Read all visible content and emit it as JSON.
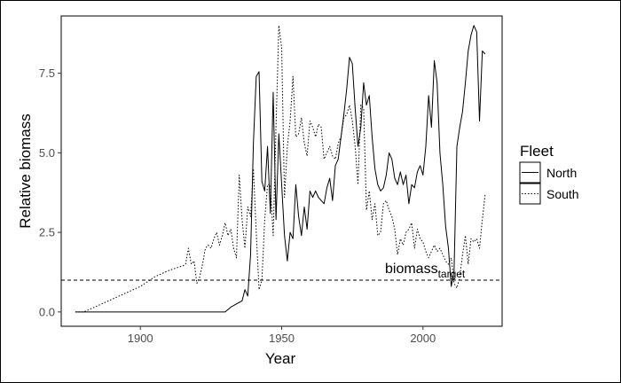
{
  "chart_data": {
    "type": "line",
    "title": "",
    "xlabel": "Year",
    "ylabel": "Relative biomass",
    "xlim": [
      1872,
      2028
    ],
    "ylim": [
      -0.45,
      9.3
    ],
    "x_ticks": [
      1900,
      1950,
      2000
    ],
    "x_tick_labels": [
      "1900",
      "1950",
      "2000"
    ],
    "y_ticks": [
      0,
      2.5,
      5,
      7.5
    ],
    "y_tick_labels": [
      "0.0",
      "2.5",
      "5.0",
      "7.5"
    ],
    "grid": false,
    "legend": {
      "title": "Fleet",
      "position": "right"
    },
    "reference_line": {
      "y": 1.0,
      "style": "dashed",
      "label": "biomass",
      "label_sub": "target"
    },
    "series": [
      {
        "name": "North",
        "style": "solid",
        "x": [
          1877,
          1880,
          1890,
          1900,
          1910,
          1920,
          1930,
          1932,
          1934,
          1936,
          1937,
          1938,
          1939,
          1940,
          1941,
          1942,
          1943,
          1944,
          1945,
          1946,
          1947,
          1948,
          1949,
          1950,
          1951,
          1952,
          1953,
          1954,
          1955,
          1956,
          1957,
          1958,
          1959,
          1960,
          1961,
          1962,
          1963,
          1964,
          1965,
          1966,
          1967,
          1968,
          1969,
          1970,
          1971,
          1972,
          1973,
          1974,
          1975,
          1976,
          1977,
          1978,
          1979,
          1980,
          1981,
          1982,
          1983,
          1984,
          1985,
          1986,
          1987,
          1988,
          1989,
          1990,
          1991,
          1992,
          1993,
          1994,
          1995,
          1996,
          1997,
          1998,
          1999,
          2000,
          2001,
          2002,
          2003,
          2004,
          2005,
          2006,
          2007,
          2008,
          2009,
          2010,
          2011,
          2012,
          2013,
          2014,
          2015,
          2016,
          2017,
          2018,
          2019,
          2020,
          2021,
          2022
        ],
        "y": [
          0,
          0,
          0,
          0,
          0,
          0,
          0,
          0.15,
          0.25,
          0.35,
          0.7,
          0.5,
          1.8,
          5.3,
          7.4,
          7.55,
          4.1,
          3.8,
          5.2,
          3.1,
          6.9,
          2.9,
          5.6,
          4.0,
          2.4,
          1.6,
          2.5,
          2.3,
          4.0,
          3.0,
          2.4,
          3.3,
          2.6,
          3.8,
          3.6,
          3.8,
          3.6,
          3.5,
          3.4,
          3.9,
          4.2,
          3.5,
          4.6,
          4.8,
          5.5,
          6.2,
          7.0,
          8.0,
          7.8,
          6.4,
          5.2,
          5.8,
          7.2,
          6.5,
          6.8,
          5.5,
          4.5,
          4.0,
          3.8,
          3.9,
          4.3,
          5.0,
          4.8,
          4.2,
          4.0,
          4.4,
          4.0,
          4.3,
          3.4,
          4.0,
          3.9,
          4.4,
          4.6,
          4.3,
          5.2,
          6.8,
          5.8,
          7.9,
          7.2,
          5.0,
          4.0,
          2.7,
          2.0,
          0.8,
          1.3,
          5.2,
          5.8,
          6.3,
          7.2,
          8.2,
          8.7,
          9.0,
          8.8,
          6.0,
          8.2,
          8.1
        ]
      },
      {
        "name": "South",
        "style": "dotted",
        "x": [
          1877,
          1880,
          1885,
          1890,
          1895,
          1900,
          1905,
          1910,
          1915,
          1916,
          1917,
          1918,
          1919,
          1920,
          1921,
          1922,
          1923,
          1924,
          1925,
          1926,
          1927,
          1928,
          1929,
          1930,
          1931,
          1932,
          1933,
          1934,
          1935,
          1936,
          1937,
          1938,
          1939,
          1940,
          1941,
          1942,
          1943,
          1944,
          1945,
          1946,
          1947,
          1948,
          1949,
          1950,
          1951,
          1952,
          1953,
          1954,
          1955,
          1956,
          1957,
          1958,
          1959,
          1960,
          1961,
          1962,
          1963,
          1964,
          1965,
          1966,
          1967,
          1968,
          1969,
          1970,
          1971,
          1972,
          1973,
          1974,
          1975,
          1976,
          1977,
          1978,
          1979,
          1980,
          1981,
          1982,
          1983,
          1984,
          1985,
          1986,
          1987,
          1988,
          1989,
          1990,
          1991,
          1992,
          1993,
          1994,
          1995,
          1996,
          1997,
          1998,
          1999,
          2000,
          2001,
          2002,
          2003,
          2004,
          2005,
          2006,
          2007,
          2008,
          2009,
          2010,
          2011,
          2012,
          2013,
          2014,
          2015,
          2016,
          2017,
          2018,
          2019,
          2020,
          2021,
          2022
        ],
        "y": [
          0,
          0,
          0.2,
          0.4,
          0.6,
          0.8,
          1.1,
          1.3,
          1.45,
          1.5,
          2.0,
          1.5,
          1.6,
          0.9,
          1.1,
          1.5,
          2.0,
          2.1,
          2.0,
          2.3,
          2.5,
          2.1,
          2.4,
          2.8,
          2.4,
          2.6,
          2.0,
          1.7,
          4.3,
          2.9,
          2.0,
          3.3,
          3.0,
          4.5,
          2.5,
          0.7,
          1.0,
          2.9,
          4.0,
          4.0,
          2.4,
          5.8,
          9.0,
          8.3,
          3.6,
          5.2,
          6.0,
          7.4,
          5.5,
          5.6,
          6.1,
          5.3,
          4.9,
          6.0,
          5.8,
          5.5,
          5.9,
          5.8,
          4.8,
          5.0,
          5.2,
          4.9,
          4.8,
          5.3,
          5.5,
          6.1,
          6.2,
          6.5,
          6.0,
          5.2,
          4.0,
          6.5,
          6.4,
          3.2,
          3.8,
          2.9,
          3.4,
          2.4,
          2.5,
          3.4,
          3.5,
          3.2,
          3.0,
          2.6,
          1.8,
          2.3,
          2.1,
          2.5,
          2.6,
          2.8,
          2.0,
          2.6,
          2.3,
          2.2,
          1.9,
          1.7,
          1.9,
          2.1,
          1.9,
          2.0,
          1.8,
          1.6,
          1.5,
          1.7,
          0.9,
          0.75,
          1.1,
          1.8,
          2.4,
          1.5,
          2.3,
          2.2,
          2.3,
          2.0,
          2.9,
          3.7
        ]
      }
    ]
  }
}
